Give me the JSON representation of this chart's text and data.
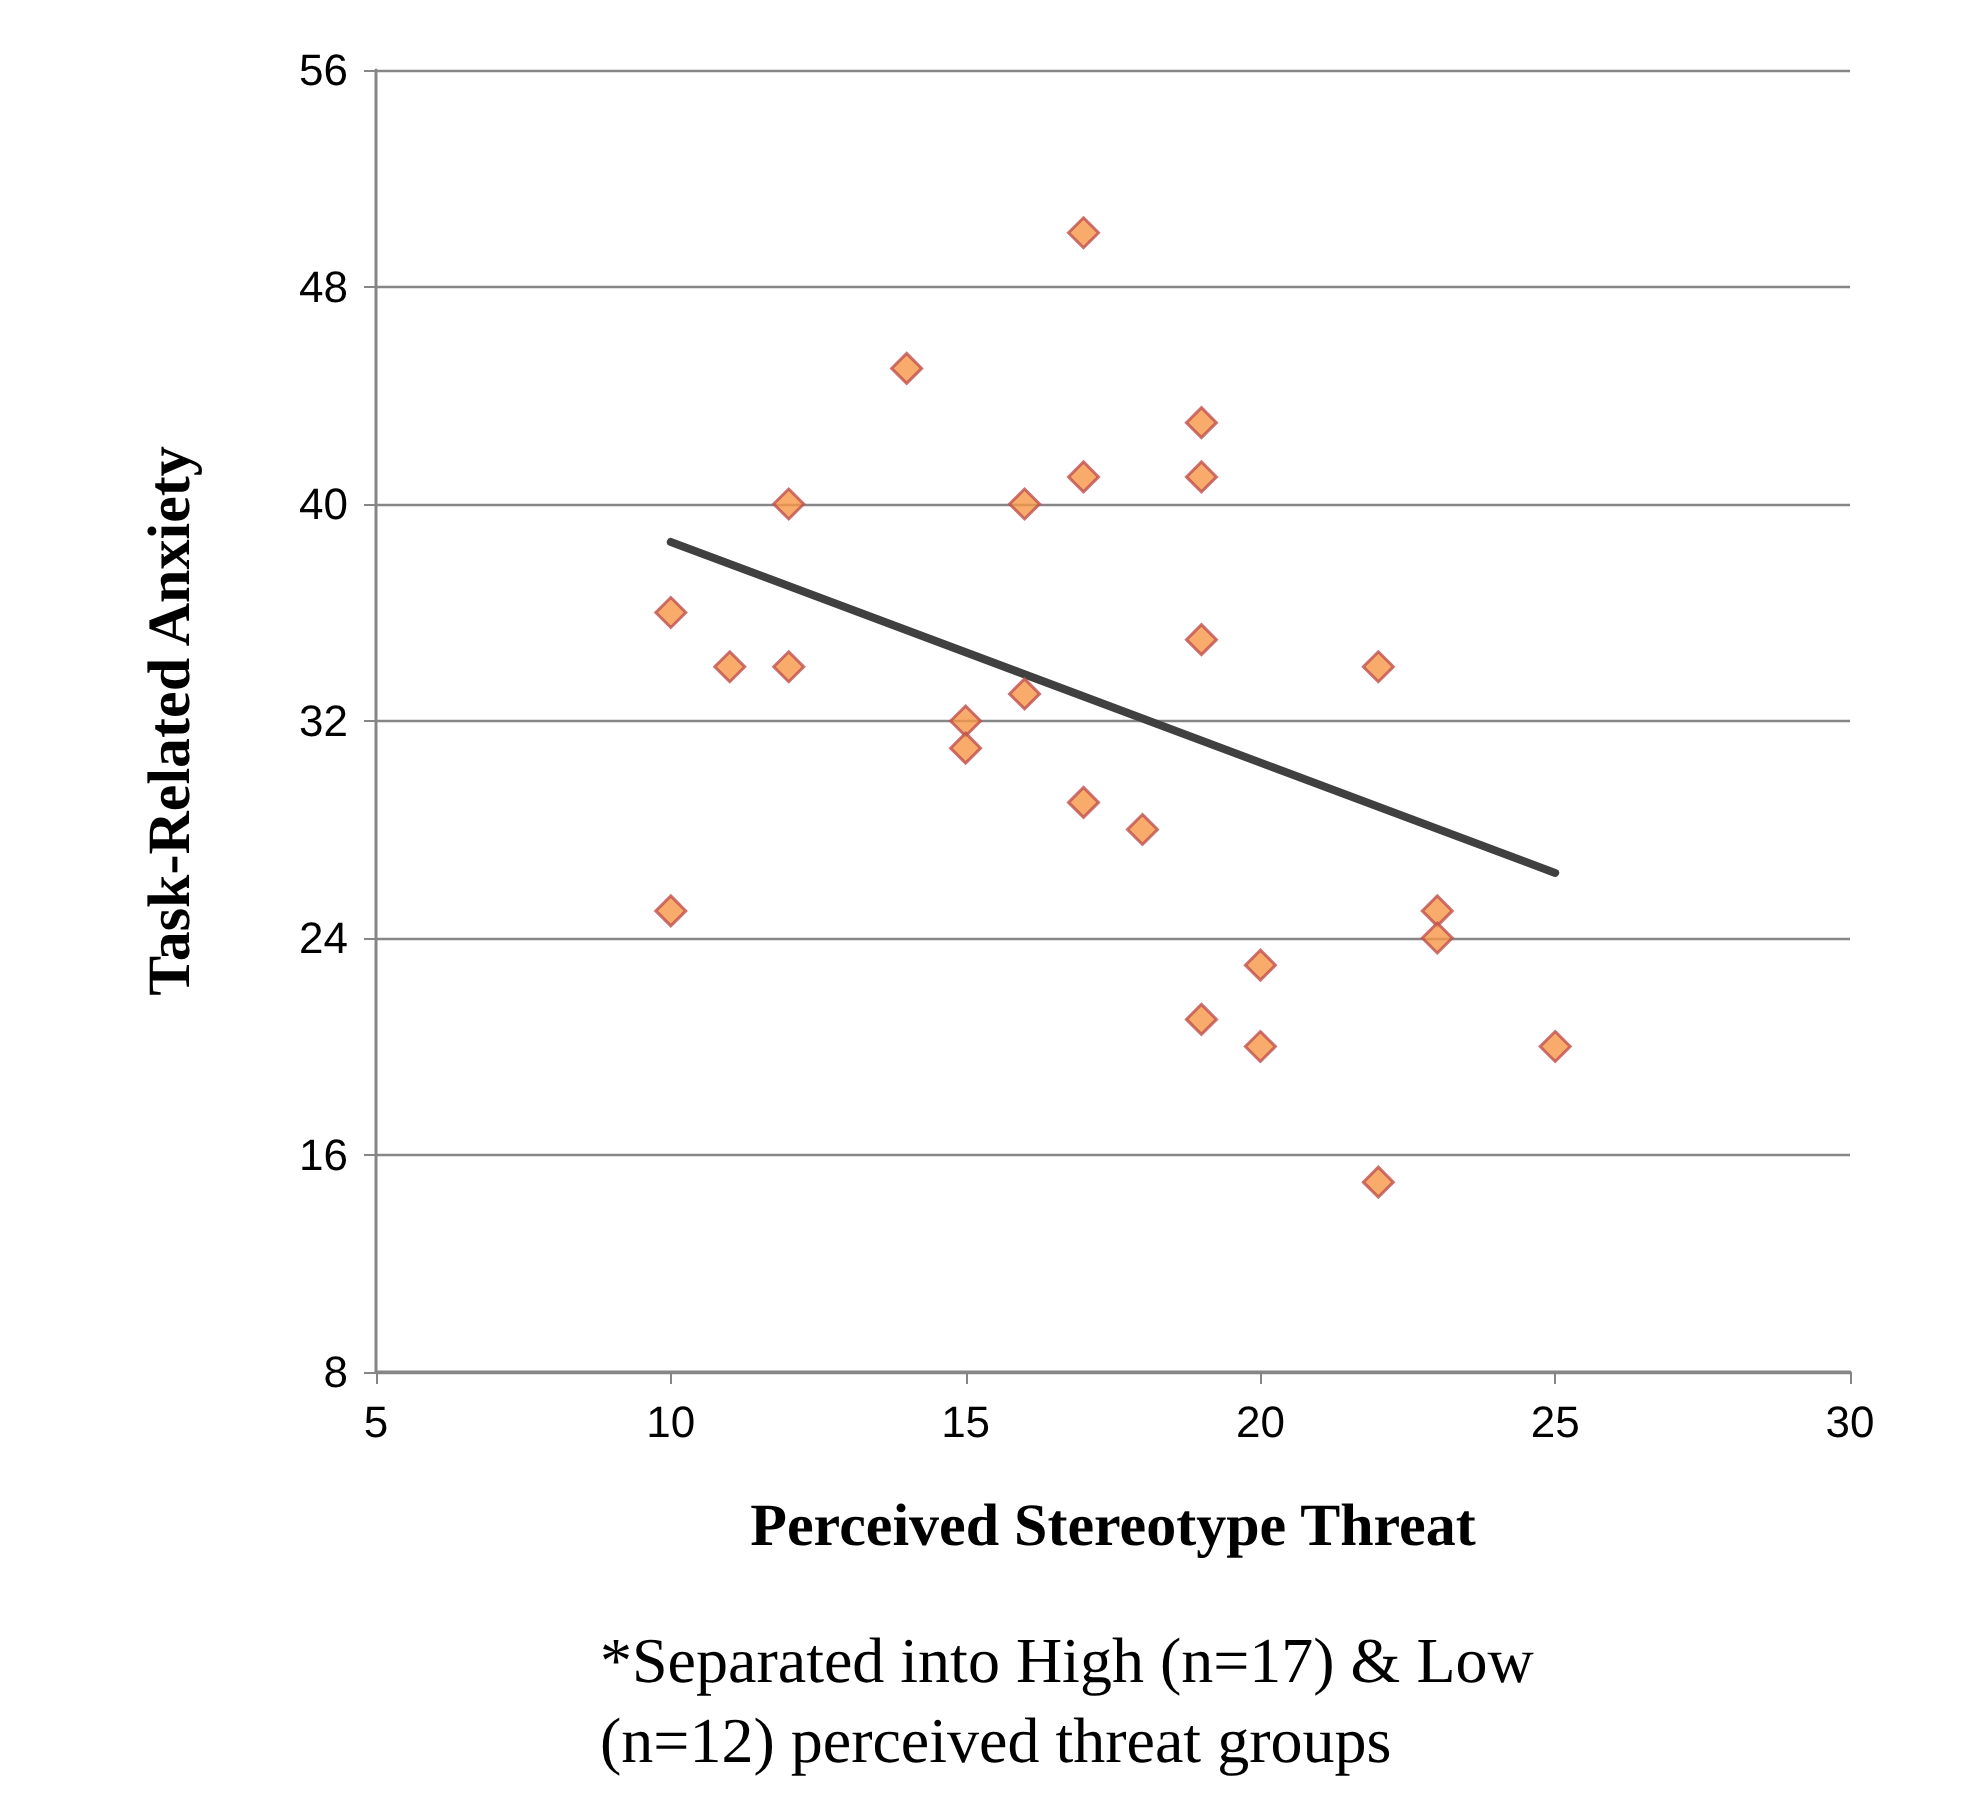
{
  "chart_data": {
    "type": "scatter",
    "xlabel": "Perceived Stereotype Threat",
    "ylabel": "Task-Related Anxiety",
    "annotations": [
      "*Separated into High (n=17) & Low (n=12) perceived threat groups"
    ],
    "series": [
      {
        "color": "#f79646",
        "marker": "diamond",
        "x": [
          10,
          10,
          11,
          12,
          12,
          14,
          15,
          15,
          16,
          16,
          17,
          17,
          17,
          18,
          19,
          19,
          19,
          19,
          20,
          20,
          22,
          22,
          23,
          23,
          25
        ],
        "values": [
          36,
          25,
          34,
          34,
          40,
          45,
          32,
          31,
          40,
          33,
          50,
          41,
          29,
          28,
          43,
          41,
          35,
          21,
          23,
          20,
          34,
          15,
          25,
          24,
          20
        ]
      },
      {
        "type": "line",
        "color": "#404040",
        "marker": "none",
        "line_style": "solid",
        "x": [
          10,
          25
        ],
        "values": [
          38.6,
          26.4
        ]
      }
    ],
    "xlim": [
      5,
      30
    ],
    "xticks": [
      5,
      10,
      15,
      20,
      25,
      30
    ],
    "ylim": [
      8,
      56
    ],
    "yticks": [
      8,
      16,
      24,
      32,
      40,
      48,
      56
    ],
    "grid": "y"
  }
}
